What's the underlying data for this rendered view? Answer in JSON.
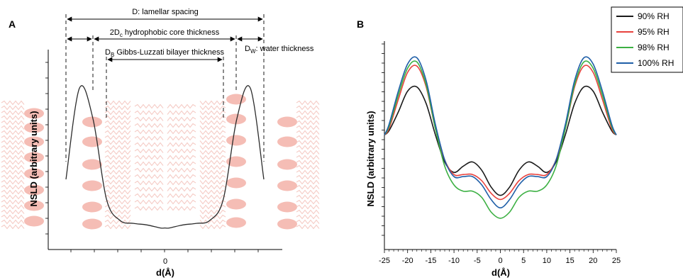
{
  "figure": {
    "panel_a_label": "A",
    "panel_b_label": "B",
    "annotations": {
      "lamellar": "D: lamellar spacing",
      "core": "2D",
      "core_sub": "c",
      "core_rest": " hydrophobic core thickness",
      "gl": "D",
      "gl_sub": "B",
      "gl_rest": " Gibbs-Luzzati bilayer thickness",
      "water": "D",
      "water_sub": "W",
      "water_rest": ": water thickness"
    },
    "colors": {
      "axis": "#000000",
      "profile_a": "#2b2b2b",
      "molecule": "#f4c7c0",
      "molecule_head": "#f3b2a8"
    }
  },
  "chart_data": [
    {
      "type": "line",
      "panel": "A",
      "xlabel": "d(Å)",
      "ylabel": "NSLD (arbitrary units)",
      "x_ticks": [
        "0"
      ],
      "x": [
        -22,
        -19,
        -16,
        -13,
        -10,
        -7,
        -4,
        -1,
        0,
        1,
        4,
        7,
        10,
        13,
        16,
        19,
        22
      ],
      "values": [
        0.35,
        0.95,
        0.75,
        0.22,
        0.08,
        0.06,
        0.05,
        0.03,
        0.03,
        0.03,
        0.05,
        0.06,
        0.08,
        0.22,
        0.75,
        0.95,
        0.35
      ]
    },
    {
      "type": "line",
      "panel": "B",
      "xlabel": "d(Å)",
      "ylabel": "NSLD (arbitrary units)",
      "xlim": [
        -25,
        25
      ],
      "x_ticks": [
        -25,
        -20,
        -15,
        -10,
        -5,
        0,
        5,
        10,
        15,
        20,
        25
      ],
      "legend_position": "top-right",
      "x": [
        -25,
        -24,
        -22,
        -20,
        -18,
        -16,
        -14,
        -12,
        -10,
        -8,
        -6,
        -4,
        -2,
        0,
        2,
        4,
        6,
        8,
        10,
        12,
        14,
        16,
        18,
        20,
        22,
        24,
        25
      ],
      "series": [
        {
          "name": "90% RH",
          "color": "#1a1a1a",
          "values": [
            0.55,
            0.57,
            0.66,
            0.76,
            0.78,
            0.7,
            0.55,
            0.42,
            0.37,
            0.4,
            0.42,
            0.38,
            0.3,
            0.26,
            0.3,
            0.38,
            0.42,
            0.4,
            0.37,
            0.42,
            0.55,
            0.7,
            0.78,
            0.76,
            0.66,
            0.57,
            0.55
          ]
        },
        {
          "name": "95% RH",
          "color": "#e8423d",
          "values": [
            0.55,
            0.58,
            0.72,
            0.85,
            0.88,
            0.78,
            0.58,
            0.43,
            0.36,
            0.36,
            0.36,
            0.33,
            0.27,
            0.24,
            0.27,
            0.33,
            0.36,
            0.36,
            0.36,
            0.43,
            0.58,
            0.78,
            0.88,
            0.85,
            0.72,
            0.58,
            0.55
          ]
        },
        {
          "name": "98% RH",
          "color": "#3cb043",
          "values": [
            0.55,
            0.59,
            0.74,
            0.87,
            0.9,
            0.79,
            0.58,
            0.4,
            0.31,
            0.28,
            0.28,
            0.25,
            0.18,
            0.15,
            0.18,
            0.25,
            0.28,
            0.28,
            0.31,
            0.4,
            0.58,
            0.79,
            0.9,
            0.87,
            0.74,
            0.59,
            0.55
          ]
        },
        {
          "name": "100% RH",
          "color": "#1f5fa8",
          "values": [
            0.55,
            0.6,
            0.76,
            0.89,
            0.92,
            0.81,
            0.6,
            0.43,
            0.35,
            0.35,
            0.35,
            0.31,
            0.24,
            0.2,
            0.24,
            0.31,
            0.35,
            0.35,
            0.35,
            0.43,
            0.6,
            0.81,
            0.92,
            0.89,
            0.76,
            0.6,
            0.55
          ]
        }
      ]
    }
  ]
}
